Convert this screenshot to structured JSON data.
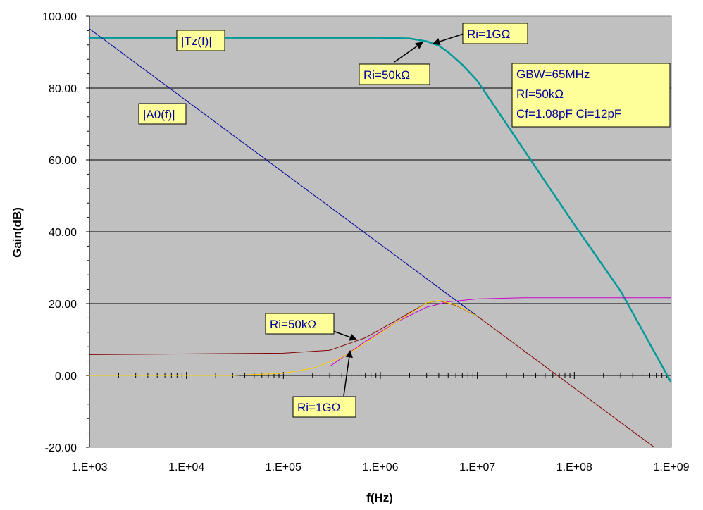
{
  "chart_data": {
    "type": "line",
    "x_scale": "log10",
    "xlabel": "f(Hz)",
    "ylabel": "Gain(dB)",
    "xlim": [
      1000,
      1000000000
    ],
    "ylim": [
      -20,
      100
    ],
    "grid": "horizontal",
    "background": "#c0c0c0",
    "x_ticks": [
      "1.E+03",
      "1.E+04",
      "1.E+05",
      "1.E+06",
      "1.E+07",
      "1.E+08",
      "1.E+09"
    ],
    "x_tick_values": [
      1000,
      10000,
      100000,
      1000000,
      10000000,
      100000000,
      1000000000
    ],
    "y_ticks": [
      "-20.00",
      "0.00",
      "20.00",
      "40.00",
      "60.00",
      "80.00",
      "100.00"
    ],
    "y_tick_values": [
      -20,
      0,
      20,
      40,
      60,
      80,
      100
    ],
    "series": [
      {
        "color": "#009999",
        "width": 2.5,
        "x": [
          1000,
          100000,
          1000000,
          2000000,
          3000000,
          4000000,
          5000000,
          7000000,
          10000000,
          20000000,
          50000000,
          100000000,
          300000000,
          1000000000
        ],
        "y": [
          94,
          94,
          94,
          93.8,
          93,
          91.8,
          90,
          86.5,
          82,
          70,
          54,
          42,
          23.5,
          -2
        ]
      },
      {
        "color": "#000099",
        "width": 1,
        "x": [
          1000,
          1000000,
          5000000,
          10000000
        ],
        "y": [
          96.5,
          36.5,
          22.5,
          16.5
        ]
      },
      {
        "color": "#800000",
        "width": 1,
        "x": [
          1000,
          100000,
          300000,
          700000,
          1500000,
          3000000,
          4000000,
          6000000,
          10000000,
          100000000,
          1000000000
        ],
        "y": [
          5.8,
          6.2,
          7,
          10.5,
          15.5,
          20.2,
          20.8,
          19.5,
          16.5,
          -3.5,
          -23.5
        ]
      },
      {
        "color": "#cc00cc",
        "width": 1,
        "x": [
          300000,
          700000,
          1500000,
          3000000,
          5000000,
          10000000,
          30000000,
          100000000,
          1000000000
        ],
        "y": [
          2.5,
          9.5,
          15,
          19,
          20.5,
          21.3,
          21.6,
          21.6,
          21.6
        ]
      },
      {
        "color": "#ffcc00",
        "width": 1,
        "x": [
          1000,
          30000,
          100000,
          200000,
          400000,
          700000,
          1500000,
          3000000,
          4000000,
          6000000,
          10000000
        ],
        "y": [
          0,
          0,
          0.6,
          2,
          5,
          9,
          15,
          20.2,
          20.9,
          19.6,
          16.5
        ]
      }
    ],
    "annotations": [
      {
        "text": "|Tz(f)|"
      },
      {
        "text": "Ri=1GΩ"
      },
      {
        "text": "Ri=50kΩ"
      },
      {
        "text": "|A0(f)|"
      },
      {
        "lines": [
          "GBW=65MHz",
          "Rf=50kΩ",
          "Cf=1.08pF  Ci=12pF"
        ]
      },
      {
        "text": "Ri=50kΩ"
      },
      {
        "text": "Ri=1GΩ"
      }
    ]
  }
}
